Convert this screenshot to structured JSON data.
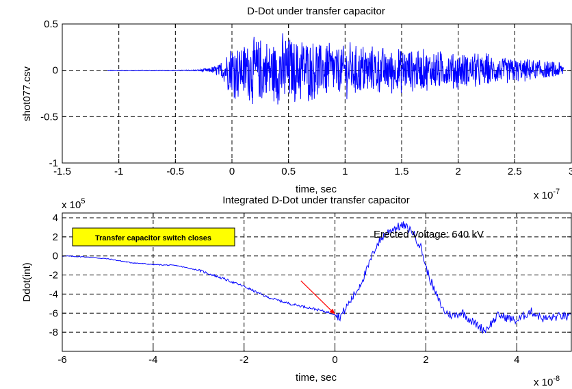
{
  "chart_data": [
    {
      "type": "line",
      "title": "D-Dot under transfer capacitor",
      "xlabel": "time, sec",
      "ylabel": "shot077.csv",
      "x_multiplier": "x 10",
      "x_exponent": "-7",
      "xlim": [
        -1.5,
        3.0
      ],
      "ylim": [
        -1,
        0.5
      ],
      "xticks": [
        -1.5,
        -1,
        -0.5,
        0,
        0.5,
        1,
        1.5,
        2,
        2.5,
        3
      ],
      "xtick_labels": [
        "-1.5",
        "-1",
        "-0.5",
        "0",
        "0.5",
        "1",
        "1.5",
        "2",
        "2.5",
        "3"
      ],
      "yticks": [
        -1,
        -0.5,
        0,
        0.5
      ],
      "ytick_labels": [
        "-1",
        "-0.5",
        "0",
        "0.5"
      ],
      "grid": true,
      "color": "#0000ff",
      "series": [
        {
          "x": [
            -1.1,
            -0.9,
            -0.7,
            -0.5,
            -0.3,
            -0.2,
            -0.1,
            0.0,
            0.1,
            0.2,
            0.3,
            0.4,
            0.45,
            0.5,
            0.6,
            0.7,
            0.8,
            0.9,
            1.0,
            1.2,
            1.4,
            1.6,
            1.8,
            2.0,
            2.2,
            2.4,
            2.6,
            2.8,
            2.93
          ],
          "y": [
            0.0,
            0.0,
            0.0,
            0.0,
            0.0,
            0.01,
            0.05,
            0.3,
            -0.35,
            0.45,
            -0.4,
            0.45,
            -0.57,
            0.4,
            -0.45,
            0.45,
            -0.4,
            0.35,
            -0.35,
            0.3,
            -0.3,
            0.3,
            -0.25,
            0.25,
            -0.2,
            0.15,
            -0.15,
            0.1,
            -0.15
          ],
          "amplitude_envelope": [
            0.003,
            0.003,
            0.003,
            0.003,
            0.008,
            0.03,
            0.09,
            0.33,
            0.35,
            0.4,
            0.4,
            0.42,
            0.45,
            0.42,
            0.4,
            0.38,
            0.36,
            0.34,
            0.32,
            0.3,
            0.28,
            0.27,
            0.24,
            0.22,
            0.2,
            0.17,
            0.14,
            0.1,
            0.1
          ]
        }
      ]
    },
    {
      "type": "line",
      "title": "Integrated D-Dot under transfer capacitor",
      "xlabel": "time, sec",
      "ylabel": "Ddot(int)",
      "x_multiplier": "x 10",
      "x_exponent": "-8",
      "y_multiplier": "x 10",
      "y_exponent": "5",
      "xlim": [
        -6,
        5.2
      ],
      "ylim": [
        -10,
        4.5
      ],
      "xticks": [
        -6,
        -4,
        -2,
        0,
        2,
        4
      ],
      "xtick_labels": [
        "-6",
        "-4",
        "-2",
        "0",
        "2",
        "4"
      ],
      "yticks": [
        -8,
        -6,
        -4,
        -2,
        0,
        2,
        4
      ],
      "ytick_labels": [
        "-8",
        "-6",
        "-4",
        "-2",
        "0",
        "2",
        "4"
      ],
      "grid": true,
      "color": "#0000ff",
      "series": [
        {
          "x": [
            -6.0,
            -5.5,
            -5.0,
            -4.5,
            -4.0,
            -3.5,
            -3.0,
            -2.5,
            -2.0,
            -1.5,
            -1.0,
            -0.5,
            0.0,
            0.1,
            0.2,
            0.3,
            0.5,
            0.7,
            0.9,
            1.1,
            1.3,
            1.5,
            1.7,
            1.9,
            2.0,
            2.2,
            2.4,
            2.6,
            2.8,
            3.0,
            3.3,
            3.6,
            4.0,
            4.3,
            4.6,
            5.0,
            5.2
          ],
          "y": [
            0.0,
            -0.1,
            -0.3,
            -0.7,
            -0.9,
            -1.0,
            -1.5,
            -2.3,
            -3.2,
            -4.3,
            -5.0,
            -5.5,
            -6.1,
            -6.4,
            -5.8,
            -5.0,
            -3.5,
            -1.5,
            1.0,
            2.3,
            2.9,
            3.2,
            2.6,
            0.8,
            -1.2,
            -3.8,
            -5.8,
            -6.3,
            -5.9,
            -6.8,
            -7.8,
            -6.2,
            -6.8,
            -5.8,
            -6.6,
            -6.3,
            -6.5
          ]
        }
      ],
      "annotations": {
        "box_label": "Transfer capacitor switch closes",
        "box_color": "#ffff00",
        "voltage_text": "Erected Voltage: 640 kV",
        "arrow_color": "#ff0000",
        "arrow_from": [
          -0.75,
          -2.6
        ],
        "arrow_to": [
          0.0,
          -6.1
        ]
      }
    }
  ]
}
